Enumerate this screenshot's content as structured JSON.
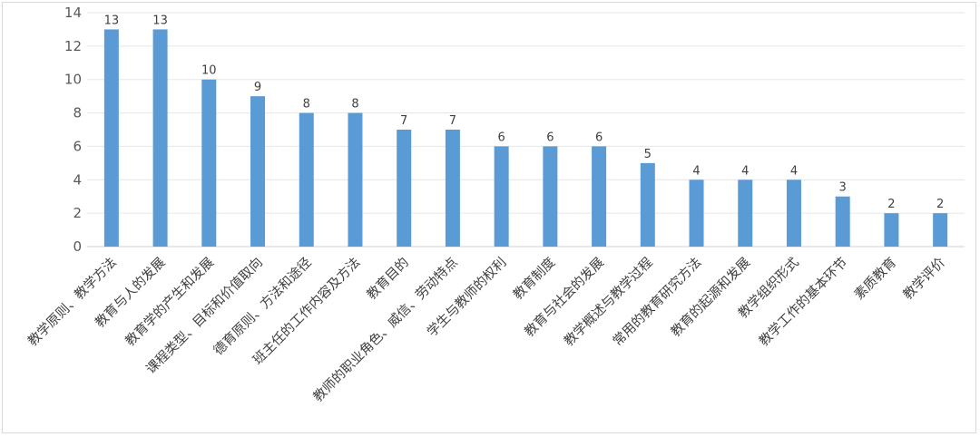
{
  "chart_data": {
    "type": "bar",
    "title": "",
    "xlabel": "",
    "ylabel": "",
    "ylim": [
      0,
      14
    ],
    "yticks": [
      0,
      2,
      4,
      6,
      8,
      10,
      12,
      14
    ],
    "grid": true,
    "bar_color": "#5b9bd5",
    "categories": [
      "教学原则、教学方法",
      "教育与人的发展",
      "教育学的产生和发展",
      "课程类型、目标和价值取向",
      "德育原则、方法和途径",
      "班主任的工作内容及方法",
      "教育目的",
      "教师的职业角色、威信、劳动特点",
      "学生与教师的权利",
      "教育制度",
      "教育与社会的发展",
      "教学概述与教学过程",
      "常用的教育研究方法",
      "教育的起源和发展",
      "教学组织形式",
      "教学工作的基本环节",
      "素质教育",
      "教学评价"
    ],
    "values": [
      13,
      13,
      10,
      9,
      8,
      8,
      7,
      7,
      6,
      6,
      6,
      5,
      4,
      4,
      4,
      3,
      2,
      2
    ]
  }
}
